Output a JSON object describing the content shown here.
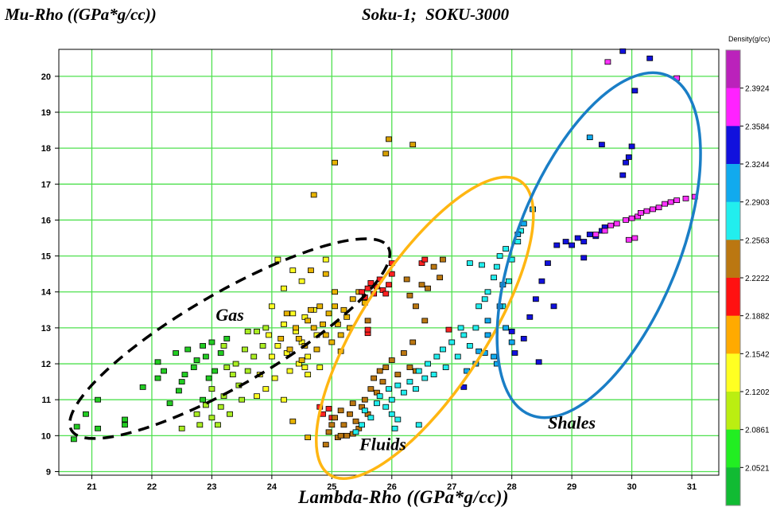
{
  "header": {
    "title": "Mu-Rho ((GPa*g/cc))",
    "well": "Soku-1;   SOKU-3000"
  },
  "chart_data": {
    "type": "scatter",
    "xlabel": "Lambda-Rho ((GPa*g/cc))",
    "ylabel": "Mu-Rho ((GPa*g/cc))",
    "xlim": [
      20.45,
      31.45
    ],
    "ylim": [
      8.9,
      20.75
    ],
    "x_ticks": [
      21,
      22,
      23,
      24,
      25,
      26,
      27,
      28,
      29,
      30,
      31
    ],
    "y_ticks": [
      9,
      10,
      11,
      12,
      13,
      14,
      15,
      16,
      17,
      18,
      19,
      20
    ],
    "grid": true,
    "grid_color": "#4fe04f",
    "colorbar": {
      "title": "Density(g/cc)",
      "ticks": [
        "2.3924",
        "2.3584",
        "2.3244",
        "2.2903",
        "2.2563",
        "2.2222",
        "2.1882",
        "2.1542",
        "2.1202",
        "2.0861",
        "2.0521"
      ],
      "colors_top_to_bottom": [
        "#bb22bb",
        "#ff22ff",
        "#1111dd",
        "#11aaee",
        "#22eeee",
        "#bb7711",
        "#ff1111",
        "#ffaa00",
        "#ffff22",
        "#bbee11",
        "#22ee22",
        "#11bb33"
      ]
    },
    "annotations": [
      {
        "text": "Gas",
        "x": 23.3,
        "y": 13.2
      },
      {
        "text": "Fluids",
        "x": 25.85,
        "y": 9.6
      },
      {
        "text": "Shales",
        "x": 29.0,
        "y": 10.2
      }
    ],
    "ellipses": [
      {
        "name": "Gas",
        "cx": 23.3,
        "cy": 12.7,
        "rx_px": 230,
        "ry_px": 58,
        "angle_deg": -30,
        "color": "#000000",
        "dashed": true
      },
      {
        "name": "Fluids",
        "cx": 26.55,
        "cy": 13.0,
        "rx_px": 220,
        "ry_px": 78,
        "angle_deg": -57,
        "color": "#ffb612",
        "dashed": false
      },
      {
        "name": "Shales",
        "cx": 29.45,
        "cy": 15.3,
        "rx_px": 230,
        "ry_px": 102,
        "angle_deg": -68,
        "color": "#1a7ec6",
        "dashed": false
      }
    ],
    "series": [
      {
        "color": "#22cc22",
        "points": [
          [
            20.7,
            9.9
          ],
          [
            20.75,
            10.25
          ],
          [
            20.9,
            10.6
          ],
          [
            21.1,
            11.0
          ],
          [
            21.1,
            10.2
          ],
          [
            21.55,
            10.3
          ],
          [
            21.55,
            10.45
          ],
          [
            21.85,
            11.35
          ],
          [
            22.1,
            11.6
          ],
          [
            22.1,
            12.05
          ],
          [
            22.2,
            11.8
          ],
          [
            22.3,
            10.9
          ],
          [
            22.4,
            12.3
          ],
          [
            22.5,
            11.5
          ],
          [
            22.55,
            11.7
          ],
          [
            22.6,
            12.4
          ],
          [
            22.7,
            11.9
          ],
          [
            22.75,
            12.1
          ],
          [
            22.85,
            12.5
          ],
          [
            22.9,
            12.2
          ],
          [
            23.0,
            12.6
          ],
          [
            23.05,
            11.8
          ],
          [
            23.15,
            12.3
          ],
          [
            23.25,
            12.7
          ],
          [
            22.85,
            11.0
          ],
          [
            22.95,
            11.6
          ],
          [
            22.45,
            11.25
          ]
        ]
      },
      {
        "color": "#aaee22",
        "points": [
          [
            22.5,
            10.2
          ],
          [
            22.75,
            10.6
          ],
          [
            22.8,
            10.3
          ],
          [
            22.9,
            10.85
          ],
          [
            23.0,
            10.5
          ],
          [
            23.0,
            11.3
          ],
          [
            23.1,
            10.3
          ],
          [
            23.15,
            10.8
          ],
          [
            23.2,
            11.1
          ],
          [
            23.3,
            10.6
          ],
          [
            23.35,
            11.7
          ],
          [
            23.45,
            11.4
          ],
          [
            23.5,
            11.0
          ],
          [
            23.55,
            12.4
          ],
          [
            23.6,
            11.8
          ],
          [
            23.7,
            12.2
          ],
          [
            23.75,
            12.9
          ],
          [
            23.85,
            12.5
          ],
          [
            23.9,
            13.0
          ],
          [
            23.4,
            12.0
          ],
          [
            23.2,
            12.5
          ],
          [
            23.25,
            11.9
          ],
          [
            23.6,
            12.9
          ]
        ]
      },
      {
        "color": "#ffff22",
        "points": [
          [
            23.8,
            11.7
          ],
          [
            23.9,
            11.3
          ],
          [
            23.95,
            12.8
          ],
          [
            24.0,
            12.2
          ],
          [
            24.05,
            11.6
          ],
          [
            24.1,
            12.5
          ],
          [
            24.2,
            13.1
          ],
          [
            24.25,
            12.3
          ],
          [
            24.3,
            11.8
          ],
          [
            24.35,
            13.4
          ],
          [
            24.4,
            12.9
          ],
          [
            24.45,
            12.0
          ],
          [
            24.5,
            12.6
          ],
          [
            24.55,
            13.3
          ],
          [
            24.6,
            12.2
          ],
          [
            24.6,
            11.7
          ],
          [
            24.7,
            13.5
          ],
          [
            24.75,
            12.8
          ],
          [
            24.8,
            11.9
          ],
          [
            24.2,
            14.1
          ],
          [
            24.35,
            14.6
          ],
          [
            24.5,
            14.3
          ],
          [
            24.0,
            13.6
          ],
          [
            23.75,
            11.1
          ],
          [
            24.2,
            11.0
          ],
          [
            24.55,
            11.9
          ],
          [
            24.1,
            14.9
          ],
          [
            24.9,
            14.9
          ]
        ]
      },
      {
        "color": "#e8b400",
        "points": [
          [
            24.15,
            12.7
          ],
          [
            24.25,
            13.4
          ],
          [
            24.3,
            12.4
          ],
          [
            24.4,
            13.0
          ],
          [
            24.45,
            12.7
          ],
          [
            24.55,
            12.5
          ],
          [
            24.6,
            13.2
          ],
          [
            24.65,
            13.5
          ],
          [
            24.7,
            13.0
          ],
          [
            24.75,
            12.4
          ],
          [
            24.8,
            13.6
          ],
          [
            24.85,
            13.1
          ],
          [
            24.9,
            12.8
          ],
          [
            24.95,
            13.4
          ],
          [
            25.0,
            12.6
          ],
          [
            25.05,
            13.6
          ],
          [
            25.1,
            13.1
          ],
          [
            25.15,
            12.8
          ],
          [
            25.2,
            13.5
          ],
          [
            25.25,
            13.3
          ],
          [
            25.3,
            13.0
          ],
          [
            25.35,
            13.8
          ],
          [
            25.45,
            14.0
          ],
          [
            25.55,
            13.7
          ],
          [
            25.05,
            14.0
          ],
          [
            24.9,
            14.5
          ],
          [
            24.65,
            14.6
          ],
          [
            25.05,
            17.6
          ],
          [
            24.7,
            16.7
          ],
          [
            25.15,
            12.35
          ],
          [
            24.35,
            10.4
          ],
          [
            24.6,
            9.95
          ],
          [
            24.5,
            12.1
          ]
        ]
      },
      {
        "color": "#d8a000",
        "points": [
          [
            25.95,
            18.25
          ],
          [
            25.9,
            17.85
          ],
          [
            26.35,
            18.1
          ]
        ]
      },
      {
        "color": "#ff2222",
        "points": [
          [
            25.5,
            14.0
          ],
          [
            25.6,
            14.1
          ],
          [
            25.7,
            13.95
          ],
          [
            25.75,
            14.15
          ],
          [
            25.85,
            14.05
          ],
          [
            25.95,
            14.2
          ],
          [
            25.8,
            14.35
          ],
          [
            25.65,
            14.25
          ],
          [
            25.9,
            13.95
          ],
          [
            25.55,
            13.85
          ],
          [
            26.0,
            14.5
          ],
          [
            26.0,
            14.8
          ],
          [
            26.5,
            14.8
          ],
          [
            26.55,
            14.9
          ],
          [
            25.6,
            12.85
          ],
          [
            25.6,
            12.95
          ],
          [
            24.8,
            10.8
          ],
          [
            24.85,
            10.6
          ],
          [
            24.95,
            10.75
          ],
          [
            25.0,
            10.5
          ],
          [
            26.95,
            12.95
          ]
        ]
      },
      {
        "color": "#bb7711",
        "points": [
          [
            24.9,
            9.75
          ],
          [
            24.95,
            10.1
          ],
          [
            25.0,
            10.3
          ],
          [
            25.05,
            10.5
          ],
          [
            25.1,
            9.95
          ],
          [
            25.15,
            10.7
          ],
          [
            25.2,
            10.3
          ],
          [
            25.25,
            10.0
          ],
          [
            25.3,
            10.6
          ],
          [
            25.35,
            10.9
          ],
          [
            25.4,
            10.4
          ],
          [
            25.45,
            10.2
          ],
          [
            25.5,
            10.8
          ],
          [
            25.55,
            11.0
          ],
          [
            25.6,
            10.6
          ],
          [
            25.65,
            11.3
          ],
          [
            25.7,
            11.6
          ],
          [
            25.75,
            11.2
          ],
          [
            25.8,
            11.8
          ],
          [
            25.85,
            11.5
          ],
          [
            25.9,
            11.9
          ],
          [
            26.0,
            12.1
          ],
          [
            26.1,
            11.7
          ],
          [
            26.2,
            12.3
          ],
          [
            26.3,
            11.9
          ],
          [
            26.35,
            12.6
          ],
          [
            26.4,
            13.6
          ],
          [
            26.5,
            14.2
          ],
          [
            26.6,
            14.1
          ],
          [
            26.25,
            14.35
          ],
          [
            26.3,
            13.9
          ],
          [
            26.7,
            14.7
          ],
          [
            26.8,
            14.4
          ],
          [
            26.85,
            14.9
          ],
          [
            26.4,
            11.8
          ],
          [
            26.55,
            13.2
          ],
          [
            25.6,
            13.2
          ],
          [
            25.15,
            10.0
          ],
          [
            25.35,
            10.05
          ]
        ]
      },
      {
        "color": "#22eeee",
        "points": [
          [
            25.4,
            10.1
          ],
          [
            25.5,
            10.3
          ],
          [
            25.55,
            10.7
          ],
          [
            25.65,
            10.5
          ],
          [
            25.75,
            10.9
          ],
          [
            25.8,
            11.1
          ],
          [
            25.9,
            10.8
          ],
          [
            25.95,
            11.3
          ],
          [
            26.0,
            11.0
          ],
          [
            26.05,
            10.2
          ],
          [
            26.1,
            11.4
          ],
          [
            26.2,
            11.2
          ],
          [
            26.3,
            11.5
          ],
          [
            26.4,
            11.3
          ],
          [
            26.45,
            11.8
          ],
          [
            26.55,
            11.6
          ],
          [
            26.6,
            12.0
          ],
          [
            26.7,
            11.7
          ],
          [
            26.75,
            12.2
          ],
          [
            26.85,
            12.4
          ],
          [
            26.9,
            11.9
          ],
          [
            27.0,
            12.6
          ],
          [
            27.1,
            12.2
          ],
          [
            27.2,
            12.8
          ],
          [
            27.3,
            12.5
          ],
          [
            27.4,
            13.0
          ],
          [
            27.45,
            13.6
          ],
          [
            27.55,
            13.8
          ],
          [
            27.6,
            14.0
          ],
          [
            27.7,
            14.4
          ],
          [
            27.75,
            14.7
          ],
          [
            27.8,
            15.0
          ],
          [
            27.9,
            15.2
          ],
          [
            27.95,
            14.3
          ],
          [
            28.0,
            14.9
          ],
          [
            28.1,
            15.4
          ],
          [
            28.15,
            15.7
          ],
          [
            27.3,
            14.8
          ],
          [
            27.5,
            14.75
          ],
          [
            27.85,
            13.6
          ],
          [
            27.15,
            13.0
          ],
          [
            26.45,
            10.3
          ],
          [
            26.0,
            10.6
          ],
          [
            26.1,
            10.45
          ]
        ]
      },
      {
        "color": "#11aaee",
        "points": [
          [
            27.25,
            11.8
          ],
          [
            27.4,
            12.0
          ],
          [
            27.55,
            12.3
          ],
          [
            27.6,
            13.2
          ],
          [
            27.7,
            12.2
          ],
          [
            27.75,
            12.0
          ],
          [
            27.8,
            13.6
          ],
          [
            27.85,
            14.2
          ],
          [
            27.9,
            13.0
          ],
          [
            28.0,
            12.6
          ],
          [
            28.1,
            15.6
          ],
          [
            28.2,
            15.9
          ],
          [
            28.35,
            16.3
          ],
          [
            29.3,
            18.3
          ],
          [
            27.6,
            12.8
          ],
          [
            27.45,
            12.35
          ]
        ]
      },
      {
        "color": "#1111dd",
        "points": [
          [
            28.2,
            12.7
          ],
          [
            28.3,
            13.3
          ],
          [
            28.4,
            13.8
          ],
          [
            28.5,
            14.3
          ],
          [
            28.6,
            14.8
          ],
          [
            28.7,
            13.6
          ],
          [
            28.75,
            15.3
          ],
          [
            28.9,
            15.4
          ],
          [
            29.0,
            15.3
          ],
          [
            29.1,
            15.5
          ],
          [
            29.2,
            15.4
          ],
          [
            29.3,
            15.6
          ],
          [
            29.4,
            15.55
          ],
          [
            29.5,
            15.7
          ],
          [
            29.55,
            15.8
          ],
          [
            29.5,
            18.1
          ],
          [
            29.85,
            17.25
          ],
          [
            29.9,
            17.6
          ],
          [
            29.95,
            17.75
          ],
          [
            30.0,
            18.05
          ],
          [
            30.05,
            19.6
          ],
          [
            30.3,
            20.5
          ],
          [
            29.85,
            20.7
          ],
          [
            28.0,
            12.9
          ],
          [
            28.05,
            12.3
          ],
          [
            27.2,
            11.35
          ],
          [
            29.2,
            14.95
          ],
          [
            28.45,
            12.05
          ]
        ]
      },
      {
        "color": "#ff33ff",
        "points": [
          [
            29.4,
            15.6
          ],
          [
            29.55,
            15.7
          ],
          [
            29.65,
            15.85
          ],
          [
            29.75,
            15.9
          ],
          [
            29.9,
            16.0
          ],
          [
            30.0,
            16.05
          ],
          [
            30.1,
            16.1
          ],
          [
            30.15,
            16.2
          ],
          [
            30.25,
            16.25
          ],
          [
            30.35,
            16.3
          ],
          [
            30.45,
            16.35
          ],
          [
            30.55,
            16.45
          ],
          [
            30.65,
            16.5
          ],
          [
            30.75,
            16.55
          ],
          [
            30.9,
            16.6
          ],
          [
            31.05,
            16.65
          ],
          [
            29.95,
            15.45
          ],
          [
            30.05,
            15.5
          ],
          [
            29.6,
            20.4
          ],
          [
            30.75,
            19.95
          ]
        ]
      }
    ]
  }
}
